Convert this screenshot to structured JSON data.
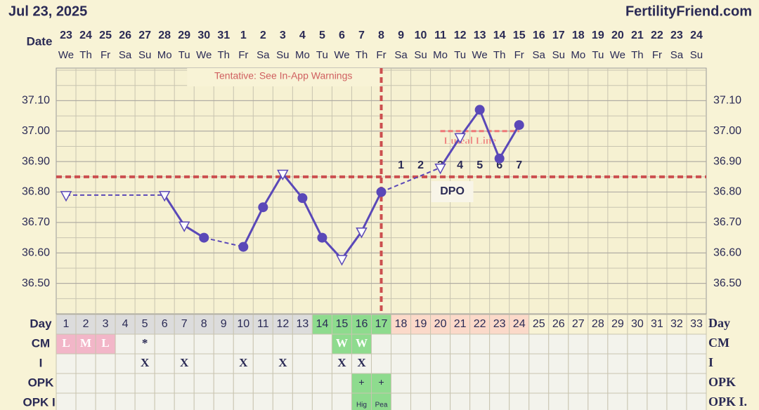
{
  "header": {
    "date": "Jul 23, 2025",
    "site": "FertilityFriend.com"
  },
  "chart_data": {
    "type": "line",
    "note": "Tentative: See In-App Warnings",
    "row_labels": {
      "date": "Date",
      "day": "Day",
      "cm": "CM",
      "i": "I",
      "opk": "OPK",
      "opk_i": "OPK I."
    },
    "dates": [
      "23",
      "24",
      "25",
      "26",
      "27",
      "28",
      "29",
      "30",
      "31",
      "1",
      "2",
      "3",
      "4",
      "5",
      "6",
      "7",
      "8",
      "9",
      "10",
      "11",
      "12",
      "13",
      "14",
      "15",
      "16",
      "17",
      "18",
      "19",
      "20",
      "21",
      "22",
      "23",
      "24"
    ],
    "weekdays": [
      "We",
      "Th",
      "Fr",
      "Sa",
      "Su",
      "Mo",
      "Tu",
      "We",
      "Th",
      "Fr",
      "Sa",
      "Su",
      "Mo",
      "Tu",
      "We",
      "Th",
      "Fr",
      "Sa",
      "Su",
      "Mo",
      "Tu",
      "We",
      "Th",
      "Fr",
      "Sa",
      "Su",
      "Mo",
      "Tu",
      "We",
      "Th",
      "Fr",
      "Sa",
      "Su"
    ],
    "categories": [
      1,
      2,
      3,
      4,
      5,
      6,
      7,
      8,
      9,
      10,
      11,
      12,
      13,
      14,
      15,
      16,
      17,
      18,
      19,
      20,
      21,
      22,
      23,
      24,
      25,
      26,
      27,
      28,
      29,
      30,
      31,
      32,
      33
    ],
    "ylim": [
      36.4,
      37.2
    ],
    "yticks": [
      {
        "value": 36.5,
        "label": "36.50"
      },
      {
        "value": 36.6,
        "label": "36.60"
      },
      {
        "value": 36.7,
        "label": "36.70"
      },
      {
        "value": 36.8,
        "label": "36.80"
      },
      {
        "value": 36.9,
        "label": "36.90"
      },
      {
        "value": 37.0,
        "label": "37.00"
      },
      {
        "value": 37.1,
        "label": "37.10"
      }
    ],
    "grid": true,
    "series": [
      {
        "color": "#5a48b8",
        "values": [
          36.79,
          null,
          null,
          null,
          null,
          36.79,
          36.69,
          36.65,
          null,
          36.62,
          36.75,
          36.86,
          36.78,
          36.65,
          36.58,
          36.67,
          36.8,
          null,
          null,
          36.88,
          36.98,
          37.07,
          36.91,
          37.02,
          null,
          null,
          null,
          null,
          null,
          null,
          null,
          null,
          null
        ],
        "markers": [
          "triangle",
          null,
          null,
          null,
          null,
          "triangle",
          "triangle",
          "circle",
          null,
          "circle",
          "circle",
          "triangle",
          "circle",
          "circle",
          "triangle",
          "triangle",
          "circle",
          null,
          null,
          "triangle",
          "triangle",
          "circle",
          "circle",
          "circle",
          null,
          null,
          null,
          null,
          null,
          null,
          null,
          null,
          null
        ]
      }
    ],
    "coverline": {
      "value": 36.85,
      "color": "#cc4f4f"
    },
    "ovulation_day": 17,
    "luteal_line": {
      "label": "Luteal Line",
      "value": 37.0,
      "start_day": 20,
      "end_day": 24,
      "color": "#ee7777"
    },
    "dpo": {
      "label": "DPO",
      "numbers": [
        1,
        2,
        3,
        4,
        5,
        6,
        7
      ],
      "start_day": 18
    },
    "phases": [
      {
        "start": 1,
        "end": 13,
        "color": "#dcdcdc"
      },
      {
        "start": 14,
        "end": 17,
        "color": "#8edb8e"
      },
      {
        "start": 18,
        "end": 24,
        "color": "#fbd9c9"
      },
      {
        "start": 25,
        "end": 33,
        "color": "#f8f3d6"
      }
    ],
    "cm": [
      "L",
      "M",
      "L",
      null,
      "*",
      null,
      null,
      null,
      null,
      null,
      null,
      null,
      null,
      null,
      "W",
      "W",
      null,
      null,
      null,
      null,
      null,
      null,
      null,
      null,
      null,
      null,
      null,
      null,
      null,
      null,
      null,
      null,
      null
    ],
    "cm_colors": {
      "L": "#f2b6c8",
      "M": "#f2b6c8",
      "W": "#8edb8e"
    },
    "intercourse": [
      null,
      null,
      null,
      null,
      "X",
      null,
      "X",
      null,
      null,
      "X",
      null,
      "X",
      null,
      null,
      "X",
      "X",
      null,
      null,
      null,
      null,
      null,
      null,
      null,
      null,
      null,
      null,
      null,
      null,
      null,
      null,
      null,
      null,
      null
    ],
    "opk": [
      null,
      null,
      null,
      null,
      null,
      null,
      null,
      null,
      null,
      null,
      null,
      null,
      null,
      null,
      null,
      "+",
      "+",
      null,
      null,
      null,
      null,
      null,
      null,
      null,
      null,
      null,
      null,
      null,
      null,
      null,
      null,
      null,
      null
    ],
    "opk_i": [
      null,
      null,
      null,
      null,
      null,
      null,
      null,
      null,
      null,
      null,
      null,
      null,
      null,
      null,
      null,
      "Hig",
      "Pea",
      null,
      null,
      null,
      null,
      null,
      null,
      null,
      null,
      null,
      null,
      null,
      null,
      null,
      null,
      null,
      null
    ],
    "marked_color": "#8edb8e"
  }
}
